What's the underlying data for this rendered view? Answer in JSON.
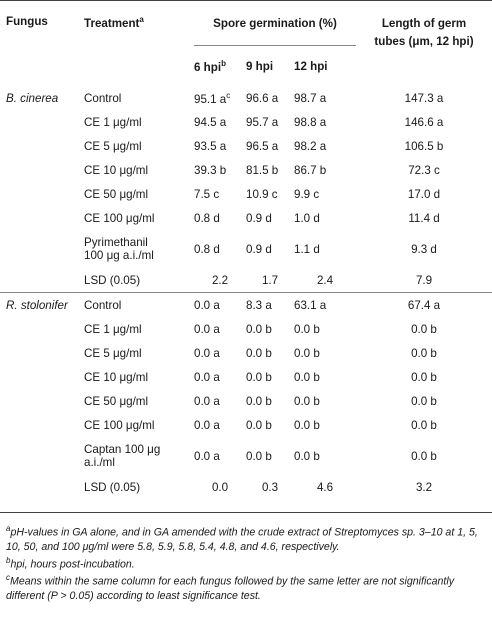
{
  "headers": {
    "fungus": "Fungus",
    "treatment": "Treatment",
    "treatment_sup": "a",
    "spore_germination": "Spore germination (%)",
    "length_line1": "Length of germ",
    "length_line2": "tubes (μm, 12 hpi)",
    "h6": "6 hpi",
    "h6_sup": "b",
    "h9": "9 hpi",
    "h12": "12 hpi"
  },
  "groups": [
    {
      "fungus": "B. cinerea",
      "rows": [
        {
          "treatment": "Control",
          "h6": "95.1 a",
          "h6_sup": "c",
          "h9": "96.6 a",
          "h12": "98.7 a",
          "len": "147.3 a"
        },
        {
          "treatment": "CE 1 μg/ml",
          "h6": "94.5 a",
          "h9": "95.7 a",
          "h12": "98.8 a",
          "len": "146.6 a"
        },
        {
          "treatment": "CE 5 μg/ml",
          "h6": "93.5 a",
          "h9": "96.5 a",
          "h12": "98.2 a",
          "len": "106.5 b"
        },
        {
          "treatment": "CE 10 μg/ml",
          "h6": "39.3 b",
          "h9": "81.5 b",
          "h12": "86.7 b",
          "len": "72.3 c"
        },
        {
          "treatment": "CE 50 μg/ml",
          "h6": "7.5 c",
          "h9": "10.9 c",
          "h12": "9.9 c",
          "len": "17.0 d"
        },
        {
          "treatment": "CE 100 μg/ml",
          "h6": "0.8 d",
          "h9": "0.9 d",
          "h12": "1.0 d",
          "len": "11.4 d"
        },
        {
          "treatment": "Pyrimethanil",
          "treatment2": "100 μg a.i./ml",
          "h6": "0.8 d",
          "h9": "0.9 d",
          "h12": "1.1 d",
          "len": "9.3 d"
        },
        {
          "treatment": "LSD (0.05)",
          "h6": "2.2",
          "h9": "1.7",
          "h12": "2.4",
          "len": "7.9",
          "lsd": true
        }
      ]
    },
    {
      "fungus": "R. stolonifer",
      "rows": [
        {
          "treatment": "Control",
          "h6": "0.0 a",
          "h9": "8.3 a",
          "h12": "63.1 a",
          "len": "67.4 a"
        },
        {
          "treatment": "CE 1 μg/ml",
          "h6": "0.0 a",
          "h9": "0.0 b",
          "h12": "0.0 b",
          "len": "0.0 b"
        },
        {
          "treatment": "CE 5 μg/ml",
          "h6": "0.0 a",
          "h9": "0.0 b",
          "h12": "0.0 b",
          "len": "0.0 b"
        },
        {
          "treatment": "CE 10 μg/ml",
          "h6": "0.0 a",
          "h9": "0.0 b",
          "h12": "0.0 b",
          "len": "0.0 b"
        },
        {
          "treatment": "CE 50 μg/ml",
          "h6": "0.0 a",
          "h9": "0.0 b",
          "h12": "0.0 b",
          "len": "0.0 b"
        },
        {
          "treatment": "CE 100 μg/ml",
          "h6": "0.0 a",
          "h9": "0.0 b",
          "h12": "0.0 b",
          "len": "0.0 b"
        },
        {
          "treatment": "Captan 100 μg",
          "treatment2": "a.i./ml",
          "h6": "0.0 a",
          "h9": "0.0 b",
          "h12": "0.0 b",
          "len": "0.0 b"
        },
        {
          "treatment": "LSD (0.05)",
          "h6": "0.0",
          "h9": "0.3",
          "h12": "4.6",
          "len": "3.2",
          "lsd": true
        }
      ]
    }
  ],
  "footnotes": {
    "a_sup": "a",
    "a_text": "pH-values in GA alone, and in GA amended with the crude extract of Streptomyces sp. 3–10 at 1, 5, 10, 50, and 100 μg/ml were 5.8, 5.9, 5.8, 5.4, 4.8, and 4.6, respectively.",
    "b_sup": "b",
    "b_text": "hpi, hours post-incubation.",
    "c_sup": "c",
    "c_text": "Means within the same column for each fungus followed by the same letter are not significantly different (P > 0.05) according to least significance test."
  }
}
